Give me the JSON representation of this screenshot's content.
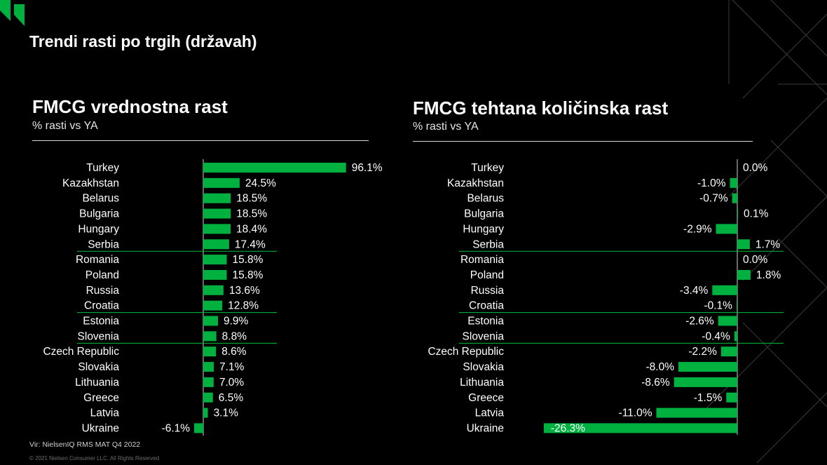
{
  "page": {
    "title": "Trendi rasti po trgih (državah)"
  },
  "brand": {
    "accent": "#00b140",
    "highlight_line": "#00c040",
    "background": "#000000"
  },
  "left": {
    "title": "FMCG vrednostna rast",
    "subtitle": "% rasti vs YA"
  },
  "right": {
    "title": "FMCG tehtana količinska rast",
    "subtitle": "% rasti vs YA"
  },
  "footer": {
    "source": "Vir: NielsenIQ RMS MAT Q4 2022",
    "copyright": "© 2021 Nielsen Consumer LLC. All Rights Reserved"
  },
  "chart_data": [
    {
      "type": "bar",
      "orientation": "horizontal",
      "title": "FMCG vrednostna rast",
      "subtitle": "% rasti vs YA",
      "categories": [
        "Turkey",
        "Kazakhstan",
        "Belarus",
        "Bulgaria",
        "Hungary",
        "Serbia",
        "Romania",
        "Poland",
        "Russia",
        "Croatia",
        "Estonia",
        "Slovenia",
        "Czech Republic",
        "Slovakia",
        "Lithuania",
        "Greece",
        "Latvia",
        "Ukraine"
      ],
      "values": [
        96.1,
        24.5,
        18.5,
        18.5,
        18.4,
        17.4,
        15.8,
        15.8,
        13.6,
        12.8,
        9.9,
        8.8,
        8.6,
        7.1,
        7.0,
        6.5,
        3.1,
        -6.1
      ],
      "labels": [
        "96.1%",
        "24.5%",
        "18.5%",
        "18.5%",
        "18.4%",
        "17.4%",
        "15.8%",
        "15.8%",
        "13.6%",
        "12.8%",
        "9.9%",
        "8.8%",
        "8.6%",
        "7.1%",
        "7.0%",
        "6.5%",
        "3.1%",
        "-6.1%"
      ],
      "highlight_rows": [
        "Serbia",
        "Croatia",
        "Slovenia"
      ],
      "bar_color": "#00b140"
    },
    {
      "type": "bar",
      "orientation": "horizontal",
      "title": "FMCG tehtana količinska rast",
      "subtitle": "% rasti vs YA",
      "categories": [
        "Turkey",
        "Kazakhstan",
        "Belarus",
        "Bulgaria",
        "Hungary",
        "Serbia",
        "Romania",
        "Poland",
        "Russia",
        "Croatia",
        "Estonia",
        "Slovenia",
        "Czech Republic",
        "Slovakia",
        "Lithuania",
        "Greece",
        "Latvia",
        "Ukraine"
      ],
      "values": [
        0.0,
        -1.0,
        -0.7,
        0.1,
        -2.9,
        1.7,
        0.0,
        1.8,
        -3.4,
        -0.1,
        -2.6,
        -0.4,
        -2.2,
        -8.0,
        -8.6,
        -1.5,
        -11.0,
        -26.3
      ],
      "labels": [
        "0.0%",
        "-1.0%",
        "-0.7%",
        "0.1%",
        "-2.9%",
        "1.7%",
        "0.0%",
        "1.8%",
        "-3.4%",
        "-0.1%",
        "-2.6%",
        "-0.4%",
        "-2.2%",
        "-8.0%",
        "-8.6%",
        "-1.5%",
        "-11.0%",
        "-26.3%"
      ],
      "highlight_rows": [
        "Serbia",
        "Croatia",
        "Slovenia"
      ],
      "bar_color": "#00b140"
    }
  ]
}
